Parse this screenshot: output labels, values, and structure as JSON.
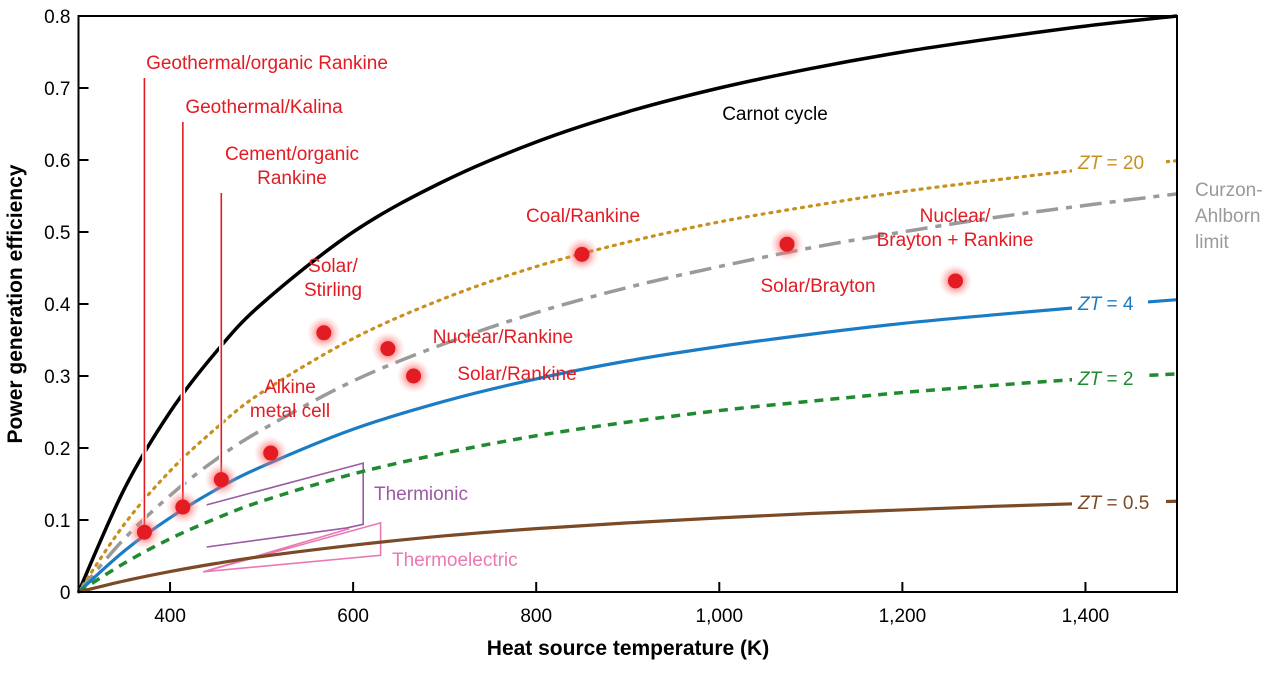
{
  "chart_data": {
    "type": "line",
    "title": "",
    "xlabel": "Heat source temperature (K)",
    "ylabel": "Power generation efficiency",
    "xlim": [
      300,
      1500
    ],
    "ylim": [
      0,
      0.8
    ],
    "xticks": [
      400,
      600,
      800,
      1000,
      1200,
      1400
    ],
    "xtick_labels": [
      "400",
      "600",
      "800",
      "1,000",
      "1,200",
      "1,400"
    ],
    "yticks": [
      0,
      0.1,
      0.2,
      0.3,
      0.4,
      0.5,
      0.6,
      0.7,
      0.8
    ],
    "ytick_labels": [
      "0",
      "0.1",
      "0.2",
      "0.3",
      "0.4",
      "0.5",
      "0.6",
      "0.7",
      "0.8"
    ],
    "grid": false,
    "x": [
      300,
      350,
      400,
      450,
      500,
      600,
      700,
      800,
      900,
      1000,
      1100,
      1200,
      1300,
      1400,
      1500
    ],
    "series": [
      {
        "name": "Carnot cycle",
        "color": "#000000",
        "style": "solid",
        "values": [
          0,
          0.143,
          0.25,
          0.333,
          0.4,
          0.5,
          0.571,
          0.625,
          0.667,
          0.7,
          0.727,
          0.75,
          0.769,
          0.786,
          0.8
        ]
      },
      {
        "name": "ZT = 20",
        "color": "#c8901e",
        "style": "dotted",
        "values": [
          0,
          0.094,
          0.168,
          0.227,
          0.277,
          0.352,
          0.408,
          0.452,
          0.486,
          0.514,
          0.536,
          0.556,
          0.572,
          0.587,
          0.599
        ]
      },
      {
        "name": "Curzon-Ahlborn limit",
        "color": "#9a9a9a",
        "style": "dashdot",
        "values": [
          0,
          0.074,
          0.134,
          0.184,
          0.225,
          0.293,
          0.345,
          0.388,
          0.423,
          0.452,
          0.478,
          0.5,
          0.52,
          0.537,
          0.553
        ]
      },
      {
        "name": "ZT = 4",
        "color": "#1b7cc6",
        "style": "solid",
        "values": [
          0,
          0.057,
          0.103,
          0.142,
          0.174,
          0.226,
          0.265,
          0.296,
          0.321,
          0.341,
          0.358,
          0.373,
          0.385,
          0.396,
          0.406
        ]
      },
      {
        "name": "ZT = 2",
        "color": "#1f8a2f",
        "style": "dashed",
        "values": [
          0,
          0.04,
          0.074,
          0.102,
          0.126,
          0.164,
          0.193,
          0.217,
          0.236,
          0.252,
          0.265,
          0.277,
          0.287,
          0.296,
          0.303
        ]
      },
      {
        "name": "ZT = 0.5",
        "color": "#7b4a26",
        "style": "solid",
        "values": [
          0,
          0.0154,
          0.0284,
          0.0396,
          0.0493,
          0.065,
          0.078,
          0.088,
          0.096,
          0.103,
          0.109,
          0.114,
          0.119,
          0.123,
          0.126
        ]
      }
    ],
    "curve_labels": {
      "carnot": "Carnot cycle",
      "zt20": "ZT = 20",
      "zt4": "ZT = 4",
      "zt2": "ZT = 2",
      "zt05": "ZT = 0.5",
      "curzon": [
        "Curzon-",
        "Ahlborn",
        "limit"
      ]
    },
    "points_color": "#e31b23",
    "points": [
      {
        "label": [
          "Geothermal/organic Rankine"
        ],
        "x": 372,
        "y": 0.083
      },
      {
        "label": [
          "Geothermal/Kalina"
        ],
        "x": 414,
        "y": 0.118
      },
      {
        "label": [
          "Cement/organic",
          "Rankine"
        ],
        "x": 456,
        "y": 0.156
      },
      {
        "label": [
          "Alkine",
          "metal cell"
        ],
        "x": 510,
        "y": 0.193
      },
      {
        "label": [
          "Solar/",
          "Stirling"
        ],
        "x": 568,
        "y": 0.36
      },
      {
        "label": [
          "Nuclear/Rankine"
        ],
        "x": 638,
        "y": 0.338
      },
      {
        "label": [
          "Solar/Rankine"
        ],
        "x": 666,
        "y": 0.3
      },
      {
        "label": [
          "Coal/Rankine"
        ],
        "x": 850,
        "y": 0.469
      },
      {
        "label": [
          "Solar/Brayton"
        ],
        "x": 1074,
        "y": 0.483
      },
      {
        "label": [
          "Nuclear/",
          "Brayton + Rankine"
        ],
        "x": 1258,
        "y": 0.432
      }
    ],
    "regions": [
      {
        "name": "Thermionic",
        "color": "#9b5aa3",
        "outline": [
          [
            440,
            0.121
          ],
          [
            611,
            0.179
          ],
          [
            611,
            0.094
          ],
          [
            593,
            0.089
          ],
          [
            440,
            0.0625
          ]
        ]
      },
      {
        "name": "Thermoelectric",
        "color": "#ea78b2",
        "outline": [
          [
            436,
            0.028
          ],
          [
            630,
            0.096
          ],
          [
            630,
            0.051
          ],
          [
            436,
            0.028
          ],
          [
            596,
            0.088
          ]
        ]
      }
    ]
  }
}
